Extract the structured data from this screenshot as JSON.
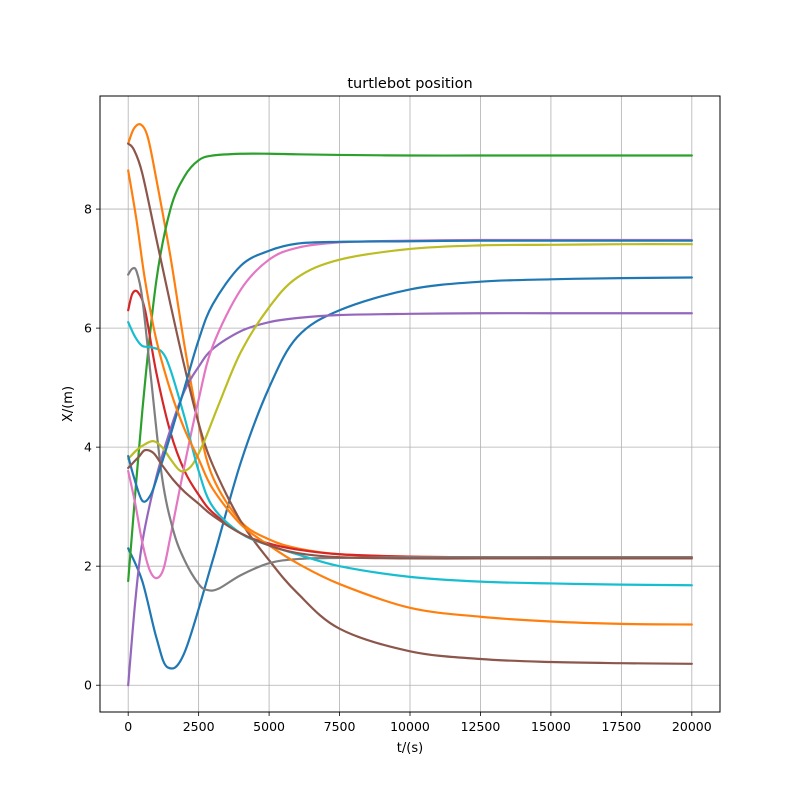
{
  "chart_data": {
    "type": "line",
    "title": "turtlebot position",
    "xlabel": "t/(s)",
    "ylabel": "X/(m)",
    "xlim": [
      -1000,
      21000
    ],
    "ylim": [
      -0.45,
      9.9
    ],
    "xticks": [
      0,
      2500,
      5000,
      7500,
      10000,
      12500,
      15000,
      17500,
      20000
    ],
    "xtick_labels": [
      "0",
      "2500",
      "5000",
      "7500",
      "10000",
      "12500",
      "15000",
      "17500",
      "20000"
    ],
    "yticks": [
      0,
      2,
      4,
      6,
      8
    ],
    "ytick_labels": [
      "0",
      "2",
      "4",
      "6",
      "8"
    ],
    "grid": true,
    "legend": "none",
    "series": [
      {
        "color": "#1f77b4",
        "x": [
          0,
          500,
          1000,
          1400,
          2000,
          3000,
          4000,
          5000,
          6000,
          7500,
          10000,
          12500,
          15000,
          17500,
          20000
        ],
        "y": [
          2.3,
          1.75,
          0.8,
          0.3,
          0.55,
          2.1,
          3.75,
          5.0,
          5.85,
          6.3,
          6.65,
          6.78,
          6.82,
          6.84,
          6.85
        ]
      },
      {
        "color": "#ff7f0e",
        "x": [
          0,
          200,
          450,
          700,
          1000,
          1500,
          2000,
          2500,
          3000,
          4000,
          5000,
          6000,
          7500,
          10000,
          12500,
          15000,
          17500,
          20000
        ],
        "y": [
          9.1,
          9.35,
          9.42,
          9.2,
          8.5,
          7.2,
          5.7,
          4.4,
          3.5,
          2.75,
          2.45,
          2.3,
          2.2,
          2.16,
          2.15,
          2.15,
          2.15,
          2.15
        ]
      },
      {
        "color": "#2ca02c",
        "x": [
          0,
          500,
          1000,
          1500,
          2000,
          2500,
          3000,
          4000,
          5000,
          6000,
          7500,
          10000,
          12500,
          15000,
          17500,
          20000
        ],
        "y": [
          1.75,
          4.6,
          6.8,
          8.0,
          8.55,
          8.82,
          8.9,
          8.93,
          8.93,
          8.92,
          8.91,
          8.9,
          8.9,
          8.9,
          8.9,
          8.9
        ]
      },
      {
        "color": "#d62728",
        "x": [
          0,
          150,
          350,
          600,
          1000,
          1500,
          2000,
          2500,
          3000,
          4000,
          5000,
          6000,
          7500,
          10000,
          12500,
          15000,
          17500,
          20000
        ],
        "y": [
          6.3,
          6.58,
          6.6,
          6.3,
          5.25,
          4.25,
          3.6,
          3.2,
          2.9,
          2.55,
          2.38,
          2.28,
          2.2,
          2.16,
          2.15,
          2.15,
          2.15,
          2.15
        ]
      },
      {
        "color": "#9467bd",
        "x": [
          0,
          250,
          500,
          1000,
          1500,
          2000,
          2500,
          3000,
          4000,
          5000,
          6000,
          7500,
          10000,
          12500,
          15000,
          17500,
          20000
        ],
        "y": [
          0.0,
          1.4,
          2.4,
          3.5,
          4.3,
          4.95,
          5.35,
          5.65,
          5.95,
          6.1,
          6.17,
          6.22,
          6.24,
          6.25,
          6.25,
          6.25,
          6.25
        ]
      },
      {
        "color": "#8c564b",
        "x": [
          0,
          200,
          500,
          1000,
          1500,
          2000,
          2500,
          3000,
          4000,
          5000,
          6000,
          7500,
          10000,
          12500,
          15000,
          17500,
          20000
        ],
        "y": [
          9.1,
          9.0,
          8.6,
          7.5,
          6.4,
          5.35,
          4.4,
          3.7,
          2.75,
          2.1,
          1.55,
          0.95,
          0.57,
          0.44,
          0.39,
          0.37,
          0.36
        ]
      },
      {
        "color": "#e377c2",
        "x": [
          0,
          250,
          500,
          750,
          1000,
          1250,
          1500,
          2000,
          2500,
          3000,
          4000,
          5000,
          6000,
          7500,
          10000,
          12500,
          15000,
          17500,
          20000
        ],
        "y": [
          3.6,
          3.05,
          2.4,
          1.95,
          1.8,
          1.95,
          2.5,
          3.7,
          4.8,
          5.7,
          6.65,
          7.15,
          7.35,
          7.44,
          7.47,
          7.48,
          7.48,
          7.48,
          7.48
        ]
      },
      {
        "color": "#7f7f7f",
        "x": [
          0,
          150,
          300,
          500,
          800,
          1200,
          1600,
          2000,
          2500,
          2800,
          3200,
          4000,
          5000,
          6000,
          7500,
          10000,
          12500,
          15000,
          17500,
          20000
        ],
        "y": [
          6.9,
          7.0,
          6.95,
          6.5,
          5.2,
          3.5,
          2.6,
          2.1,
          1.7,
          1.6,
          1.62,
          1.85,
          2.05,
          2.12,
          2.14,
          2.15,
          2.15,
          2.15,
          2.15,
          2.15
        ]
      },
      {
        "color": "#bcbd22",
        "x": [
          0,
          300,
          600,
          900,
          1200,
          1500,
          1800,
          2000,
          2300,
          2700,
          3200,
          4000,
          5000,
          6000,
          7500,
          10000,
          12500,
          15000,
          17500,
          20000
        ],
        "y": [
          3.8,
          3.95,
          4.05,
          4.1,
          4.0,
          3.8,
          3.62,
          3.6,
          3.72,
          4.1,
          4.7,
          5.6,
          6.35,
          6.85,
          7.15,
          7.33,
          7.39,
          7.4,
          7.41,
          7.41
        ]
      },
      {
        "color": "#17becf",
        "x": [
          0,
          250,
          500,
          800,
          1200,
          1500,
          2000,
          2500,
          3000,
          4000,
          5000,
          6000,
          7500,
          10000,
          12500,
          15000,
          17500,
          20000
        ],
        "y": [
          6.1,
          5.85,
          5.7,
          5.68,
          5.6,
          5.3,
          4.5,
          3.6,
          3.0,
          2.55,
          2.35,
          2.2,
          2.0,
          1.82,
          1.74,
          1.71,
          1.69,
          1.68
        ]
      },
      {
        "color": "#1f77b4",
        "x": [
          0,
          200,
          500,
          800,
          1100,
          1500,
          2000,
          2500,
          3000,
          4000,
          5000,
          6000,
          7500,
          10000,
          12500,
          15000,
          17500,
          20000
        ],
        "y": [
          3.85,
          3.5,
          3.1,
          3.2,
          3.6,
          4.2,
          5.0,
          5.8,
          6.4,
          7.05,
          7.3,
          7.42,
          7.45,
          7.46,
          7.47,
          7.47,
          7.47,
          7.47
        ]
      },
      {
        "color": "#ff7f0e",
        "x": [
          0,
          300,
          600,
          1000,
          1500,
          2000,
          2500,
          3000,
          4000,
          5000,
          6000,
          7500,
          10000,
          12500,
          15000,
          17500,
          20000
        ],
        "y": [
          8.65,
          7.8,
          6.8,
          5.8,
          4.95,
          4.3,
          3.8,
          3.3,
          2.7,
          2.35,
          2.05,
          1.7,
          1.3,
          1.15,
          1.07,
          1.03,
          1.02
        ]
      },
      {
        "color": "#8c564b",
        "x": [
          0,
          200,
          400,
          600,
          900,
          1200,
          1600,
          2000,
          2500,
          3000,
          4000,
          5000,
          6000,
          7500,
          10000,
          12500,
          15000,
          17500,
          20000
        ],
        "y": [
          3.65,
          3.75,
          3.85,
          3.95,
          3.9,
          3.7,
          3.45,
          3.25,
          3.05,
          2.85,
          2.55,
          2.35,
          2.22,
          2.15,
          2.13,
          2.13,
          2.13,
          2.13,
          2.13
        ]
      }
    ]
  }
}
